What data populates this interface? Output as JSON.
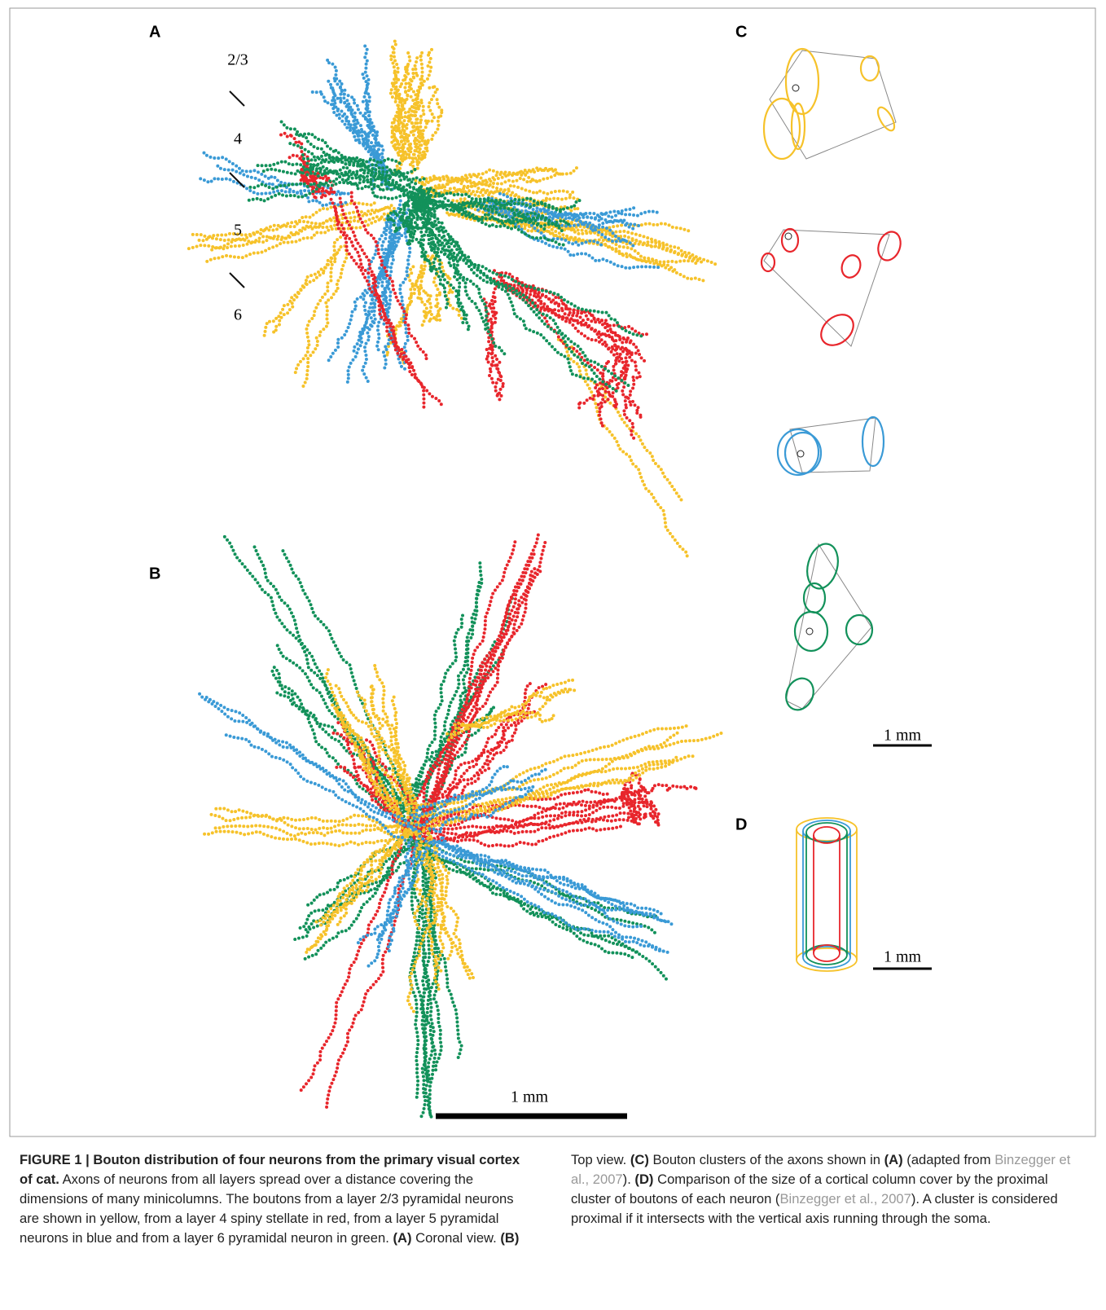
{
  "panels": {
    "A": {
      "label": "A",
      "layers": [
        "2/3",
        "4",
        "5",
        "6"
      ]
    },
    "B": {
      "label": "B",
      "scale": "1 mm"
    },
    "C": {
      "label": "C",
      "scale": "1 mm"
    },
    "D": {
      "label": "D",
      "scale": "1 mm"
    }
  },
  "caption": {
    "runs": [
      "FIGURE 1 | Bouton distribution of four neurons from the primary visual cortex of cat.",
      " Axons of neurons from all layers spread over a distance covering the dimensions of many minicolumns. The boutons from a layer 2/3 pyramidal neurons are shown in yellow, from a layer 4 spiny stellate in red, from a layer 5 pyramidal neurons in blue and from a layer 6 pyramidal neuron in green. ",
      "(A)",
      " Coronal view. ",
      "(B)",
      " Top view. ",
      "(C)",
      " Bouton clusters of the axons shown in ",
      "(A)",
      " (adapted from ",
      "Binzegger et al., 2007",
      "). ",
      "(D)",
      " Comparison of the size of a cortical column cover by the proximal cluster of boutons of each neuron (",
      "Binzegger et al., 2007",
      "). A cluster is considered proximal if it intersects with the vertical axis running through the soma."
    ]
  }
}
